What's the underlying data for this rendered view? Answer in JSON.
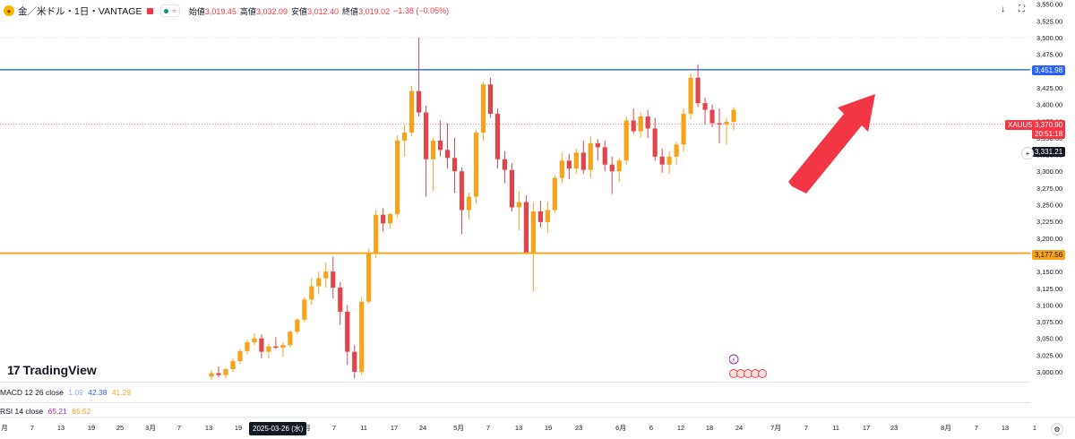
{
  "header": {
    "symbol": "金／米ドル・1日・VANTAGE",
    "pill_text": "≈",
    "open_label": "始値",
    "open": "3,019.45",
    "high_label": "高値",
    "high": "3,032.09",
    "low_label": "安値",
    "low": "3,012.40",
    "close_label": "終値",
    "close": "3,019.02",
    "change": "−1.38 (−0.05%)"
  },
  "logo": {
    "mark": "17",
    "text": "TradingView"
  },
  "macd": {
    "label": "MACD 12 26 close",
    "v1": "1.09",
    "v2": "42.38",
    "v3": "41.29"
  },
  "rsi": {
    "label": "RSI 14 close",
    "v1": "65.21",
    "v2": "65.52"
  },
  "tags": {
    "upper_line": "3,451.98",
    "symbol_tag": "XAUUSD",
    "last_price": "3,370.90",
    "countdown": "20:51:18",
    "crosshair": "3,331.21",
    "lower_line": "3,177.56"
  },
  "time_highlight": "2025-03-26 (水)",
  "colors": {
    "up": "#f7a21b",
    "down": "#e5434a",
    "blue_line": "#2962ff",
    "orange_line": "#f7a21b",
    "arrow": "#f23645"
  },
  "chart_data": {
    "type": "candlestick",
    "y_axis_ticks": [
      "3,550.00",
      "3,525.00",
      "3,500.00",
      "3,475.00",
      "3,450.00",
      "3,425.00",
      "3,400.00",
      "3,375.00",
      "3,350.00",
      "3,325.00",
      "3,300.00",
      "3,275.00",
      "3,250.00",
      "3,225.00",
      "3,200.00",
      "3,175.00",
      "3,150.00",
      "3,125.00",
      "3,100.00",
      "3,075.00",
      "3,050.00",
      "3,025.00",
      "3,000.00"
    ],
    "y_ticks_values": [
      3550,
      3525,
      3500,
      3475,
      3450,
      3425,
      3400,
      3375,
      3350,
      3325,
      3300,
      3275,
      3250,
      3225,
      3200,
      3175,
      3150,
      3125,
      3100,
      3075,
      3050,
      3025,
      3000
    ],
    "x_axis_labels": [
      "月",
      "7",
      "13",
      "19",
      "25",
      "3月",
      "7",
      "13",
      "19",
      "2025-03-26 (水)",
      "月",
      "7",
      "11",
      "17",
      "24",
      "5月",
      "7",
      "13",
      "19",
      "23",
      "6月",
      "6",
      "12",
      "18",
      "24",
      "7月",
      "7",
      "11",
      "17",
      "23",
      "8月",
      "7",
      "13",
      "1"
    ],
    "horizontal_lines": [
      3451.98,
      3177.56
    ],
    "candles": [
      [
        2993,
        3002,
        2988,
        2998
      ],
      [
        2998,
        3008,
        2992,
        2995
      ],
      [
        2995,
        3006,
        2990,
        3004
      ],
      [
        3004,
        3020,
        3000,
        3016
      ],
      [
        3016,
        3034,
        3012,
        3031
      ],
      [
        3031,
        3048,
        3026,
        3044
      ],
      [
        3044,
        3058,
        3040,
        3050
      ],
      [
        3050,
        3056,
        3020,
        3030
      ],
      [
        3030,
        3042,
        3020,
        3038
      ],
      [
        3038,
        3052,
        3034,
        3036
      ],
      [
        3036,
        3044,
        3022,
        3040
      ],
      [
        3040,
        3062,
        3036,
        3060
      ],
      [
        3060,
        3080,
        3056,
        3078
      ],
      [
        3078,
        3112,
        3074,
        3108
      ],
      [
        3108,
        3140,
        3100,
        3128
      ],
      [
        3128,
        3150,
        3116,
        3140
      ],
      [
        3140,
        3164,
        3126,
        3150
      ],
      [
        3150,
        3172,
        3110,
        3126
      ],
      [
        3126,
        3134,
        3070,
        3090
      ],
      [
        3090,
        3100,
        3010,
        3030
      ],
      [
        3030,
        3040,
        2990,
        3000
      ],
      [
        3000,
        3112,
        2995,
        3105
      ],
      [
        3105,
        3184,
        3102,
        3178
      ],
      [
        3178,
        3242,
        3170,
        3235
      ],
      [
        3235,
        3245,
        3210,
        3222
      ],
      [
        3222,
        3238,
        3214,
        3236
      ],
      [
        3236,
        3354,
        3230,
        3346
      ],
      [
        3346,
        3370,
        3322,
        3358
      ],
      [
        3358,
        3428,
        3352,
        3420
      ],
      [
        3420,
        3500,
        3382,
        3388
      ],
      [
        3388,
        3398,
        3262,
        3318
      ],
      [
        3318,
        3350,
        3270,
        3346
      ],
      [
        3346,
        3376,
        3322,
        3332
      ],
      [
        3332,
        3372,
        3304,
        3320
      ],
      [
        3320,
        3350,
        3268,
        3300
      ],
      [
        3300,
        3306,
        3206,
        3242
      ],
      [
        3242,
        3268,
        3228,
        3262
      ],
      [
        3262,
        3362,
        3252,
        3358
      ],
      [
        3358,
        3434,
        3346,
        3430
      ],
      [
        3430,
        3440,
        3380,
        3386
      ],
      [
        3386,
        3394,
        3304,
        3318
      ],
      [
        3318,
        3330,
        3282,
        3302
      ],
      [
        3302,
        3312,
        3240,
        3246
      ],
      [
        3246,
        3270,
        3212,
        3254
      ],
      [
        3254,
        3264,
        3176,
        3178
      ],
      [
        3178,
        3254,
        3120,
        3240
      ],
      [
        3240,
        3256,
        3216,
        3224
      ],
      [
        3224,
        3254,
        3208,
        3242
      ],
      [
        3242,
        3294,
        3238,
        3290
      ],
      [
        3290,
        3328,
        3282,
        3316
      ],
      [
        3316,
        3326,
        3288,
        3304
      ],
      [
        3304,
        3334,
        3296,
        3328
      ],
      [
        3328,
        3346,
        3296,
        3302
      ],
      [
        3302,
        3352,
        3290,
        3342
      ],
      [
        3342,
        3348,
        3316,
        3336
      ],
      [
        3336,
        3346,
        3300,
        3310
      ],
      [
        3310,
        3322,
        3266,
        3300
      ],
      [
        3300,
        3320,
        3284,
        3316
      ],
      [
        3316,
        3382,
        3310,
        3376
      ],
      [
        3376,
        3394,
        3356,
        3360
      ],
      [
        3360,
        3388,
        3350,
        3382
      ],
      [
        3382,
        3392,
        3350,
        3364
      ],
      [
        3364,
        3380,
        3316,
        3322
      ],
      [
        3322,
        3334,
        3298,
        3310
      ],
      [
        3310,
        3330,
        3296,
        3322
      ],
      [
        3322,
        3344,
        3310,
        3340
      ],
      [
        3340,
        3394,
        3330,
        3386
      ],
      [
        3386,
        3446,
        3378,
        3440
      ],
      [
        3440,
        3460,
        3396,
        3402
      ],
      [
        3402,
        3410,
        3370,
        3392
      ],
      [
        3392,
        3400,
        3366,
        3372
      ],
      [
        3372,
        3394,
        3342,
        3370
      ],
      [
        3370,
        3380,
        3340,
        3374
      ],
      [
        3374,
        3396,
        3362,
        3392
      ]
    ]
  }
}
